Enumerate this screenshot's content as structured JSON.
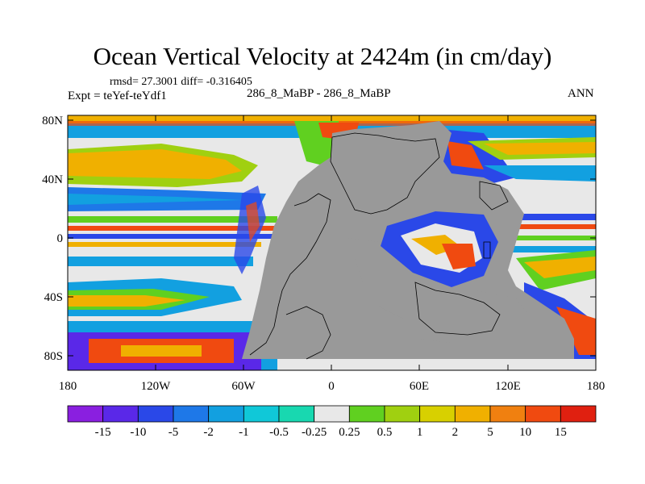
{
  "title": "Ocean Vertical Velocity at 2424m (in cm/day)",
  "stats": "rmsd= 27.3001 diff= -0.316405",
  "left_label": "Expt = teYef-teYdf1",
  "center_label": "286_8_MaBP - 286_8_MaBP",
  "right_label": "ANN",
  "axes": {
    "lon_ticks": [
      "180",
      "120W",
      "60W",
      "0",
      "60E",
      "120E",
      "180"
    ],
    "lat_ticks": [
      "80N",
      "40N",
      "0",
      "40S",
      "80S"
    ]
  },
  "colorbar": {
    "labels": [
      "-15",
      "-10",
      "-5",
      "-2",
      "-1",
      "-0.5",
      "-0.25",
      "0.25",
      "0.5",
      "1",
      "2",
      "5",
      "10",
      "15"
    ],
    "colors": [
      "#8a1fe0",
      "#5a28e8",
      "#2a48e8",
      "#1e78e8",
      "#12a0e0",
      "#10c8d8",
      "#18d8b0",
      "#e8e8e8",
      "#60d020",
      "#a0d010",
      "#d8d000",
      "#f0b000",
      "#f08010",
      "#f04a10",
      "#e02010"
    ]
  },
  "colors": {
    "land": "#999999",
    "no_change": "#e8e8e8",
    "frame": "#000000"
  }
}
